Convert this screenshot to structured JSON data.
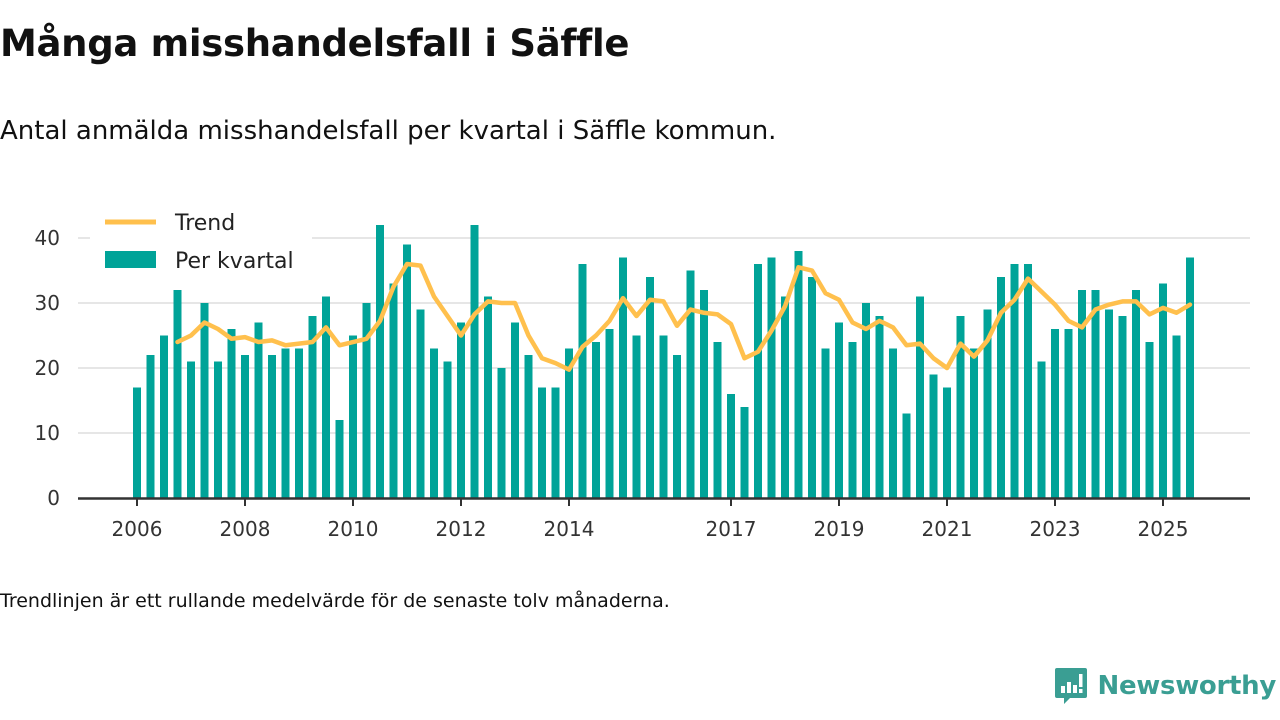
{
  "title": "Många misshandelsfall i Säffle",
  "subtitle": "Antal anmälda misshandelsfall per kvartal i Säffle kommun.",
  "footnote": "Trendlinjen är ett rullande medelvärde för de senaste tolv månaderna.",
  "logo": {
    "text": "Newsworthy",
    "icon": "newsworthy-chart-bubble-icon",
    "color": "#3a9e93"
  },
  "colors": {
    "bar": "#00a398",
    "trend": "#ffc04d",
    "grid": "#dddddd",
    "axis": "#333333"
  },
  "chart_data": {
    "type": "bar",
    "title": "Många misshandelsfall i Säffle",
    "xlabel": "",
    "ylabel": "",
    "ylim": [
      0,
      45
    ],
    "y_ticks": [
      0,
      10,
      20,
      30,
      40
    ],
    "grid": true,
    "legend_position": "top-left",
    "x_start": "2006 Q1",
    "x_ticks": [
      {
        "label": "2006",
        "index": 0
      },
      {
        "label": "2008",
        "index": 8
      },
      {
        "label": "2010",
        "index": 16
      },
      {
        "label": "2012",
        "index": 24
      },
      {
        "label": "2014",
        "index": 32
      },
      {
        "label": "2017",
        "index": 44
      },
      {
        "label": "2019",
        "index": 52
      },
      {
        "label": "2021",
        "index": 60
      },
      {
        "label": "2023",
        "index": 68
      },
      {
        "label": "2025",
        "index": 76
      }
    ],
    "categories": [
      "2006 Q1",
      "2006 Q2",
      "2006 Q3",
      "2006 Q4",
      "2007 Q1",
      "2007 Q2",
      "2007 Q3",
      "2007 Q4",
      "2008 Q1",
      "2008 Q2",
      "2008 Q3",
      "2008 Q4",
      "2009 Q1",
      "2009 Q2",
      "2009 Q3",
      "2009 Q4",
      "2010 Q1",
      "2010 Q2",
      "2010 Q3",
      "2010 Q4",
      "2011 Q1",
      "2011 Q2",
      "2011 Q3",
      "2011 Q4",
      "2012 Q1",
      "2012 Q2",
      "2012 Q3",
      "2012 Q4",
      "2013 Q1",
      "2013 Q2",
      "2013 Q3",
      "2013 Q4",
      "2014 Q1",
      "2014 Q2",
      "2014 Q3",
      "2014 Q4",
      "2015 Q1",
      "2015 Q2",
      "2015 Q3",
      "2015 Q4",
      "2016 Q1",
      "2016 Q2",
      "2016 Q3",
      "2016 Q4",
      "2017 Q1",
      "2017 Q2",
      "2017 Q3",
      "2017 Q4",
      "2018 Q1",
      "2018 Q2",
      "2018 Q3",
      "2018 Q4",
      "2019 Q1",
      "2019 Q2",
      "2019 Q3",
      "2019 Q4",
      "2020 Q1",
      "2020 Q2",
      "2020 Q3",
      "2020 Q4",
      "2021 Q1",
      "2021 Q2",
      "2021 Q3",
      "2021 Q4",
      "2022 Q1",
      "2022 Q2",
      "2022 Q3",
      "2022 Q4",
      "2023 Q1",
      "2023 Q2",
      "2023 Q3",
      "2023 Q4",
      "2024 Q1",
      "2024 Q2",
      "2024 Q3",
      "2024 Q4",
      "2025 Q1",
      "2025 Q2",
      "2025 Q3"
    ],
    "series": [
      {
        "name": "Per kvartal",
        "type": "bar",
        "values": [
          17,
          22,
          25,
          32,
          21,
          30,
          21,
          26,
          22,
          27,
          22,
          23,
          23,
          28,
          31,
          12,
          25,
          30,
          42,
          33,
          39,
          29,
          23,
          21,
          27,
          42,
          31,
          20,
          27,
          22,
          17,
          17,
          23,
          36,
          24,
          26,
          37,
          25,
          34,
          25,
          22,
          35,
          32,
          24,
          16,
          14,
          36,
          37,
          31,
          38,
          34,
          23,
          27,
          24,
          30,
          28,
          23,
          13,
          31,
          19,
          17,
          28,
          23,
          29,
          34,
          36,
          36,
          21,
          26,
          26,
          32,
          32,
          29,
          28,
          32,
          24,
          33,
          25,
          37
        ]
      },
      {
        "name": "Trend",
        "type": "line",
        "values": [
          null,
          null,
          null,
          24,
          25,
          27,
          26,
          24.5,
          24.75,
          24,
          24.25,
          23.5,
          23.75,
          24,
          26.25,
          23.5,
          24,
          24.5,
          27.25,
          32.5,
          36,
          35.75,
          31,
          28,
          25,
          28.25,
          30.25,
          30,
          30,
          25,
          21.5,
          20.75,
          19.75,
          23.25,
          25,
          27.25,
          30.75,
          28,
          30.5,
          30.25,
          26.5,
          29,
          28.5,
          28.25,
          26.75,
          21.5,
          22.5,
          25.75,
          29.5,
          35.5,
          35,
          31.5,
          30.5,
          27,
          26,
          27.25,
          26.25,
          23.5,
          23.75,
          21.5,
          20,
          23.75,
          21.75,
          24.25,
          28.5,
          30.5,
          33.75,
          31.75,
          29.75,
          27.25,
          26.25,
          29,
          29.75,
          30.25,
          30.25,
          28.25,
          29.25,
          28.5,
          29.75
        ]
      }
    ],
    "legend": [
      {
        "label": "Trend",
        "type": "line"
      },
      {
        "label": "Per kvartal",
        "type": "bar"
      }
    ]
  }
}
